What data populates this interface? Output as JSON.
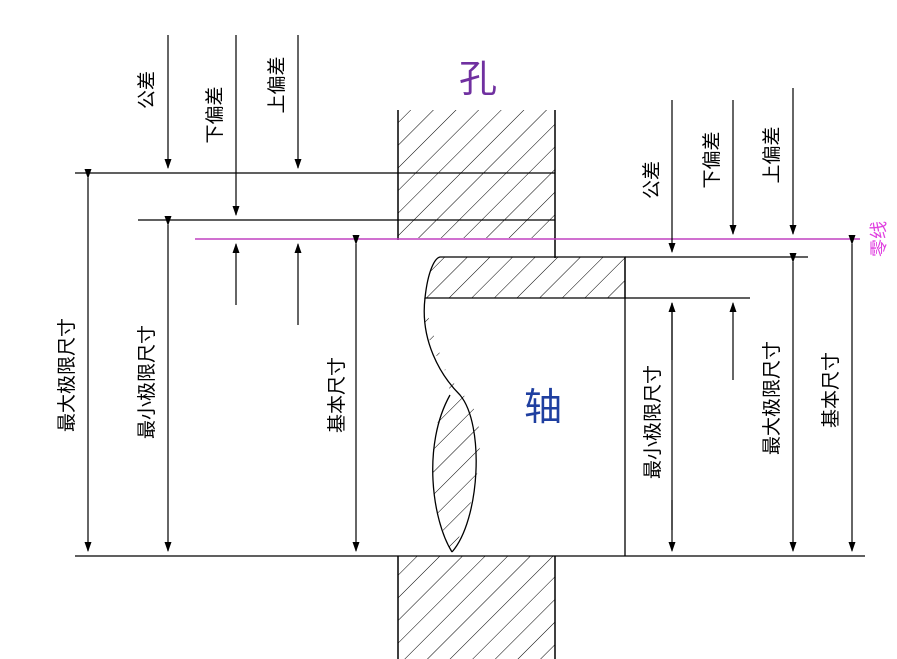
{
  "labels": {
    "hole": "孔",
    "shaft": "轴",
    "zero_line": "零线",
    "left": {
      "tolerance": "公差",
      "lower_deviation": "下偏差",
      "upper_deviation": "上偏差",
      "max_limit_size": "最大极限尺寸",
      "min_limit_size": "最小极限尺寸",
      "basic_size": "基本尺寸"
    },
    "right": {
      "tolerance": "公差",
      "lower_deviation": "下偏差",
      "upper_deviation": "上偏差",
      "min_limit_size": "最小极限尺寸",
      "max_limit_size": "最大极限尺寸",
      "basic_size": "基本尺寸"
    }
  },
  "colors": {
    "hole_label": "#7030a0",
    "shaft_label": "#1f3fa0",
    "zero_line": "#c040c0",
    "zero_label": "#e040e0",
    "lines": "#000000"
  }
}
